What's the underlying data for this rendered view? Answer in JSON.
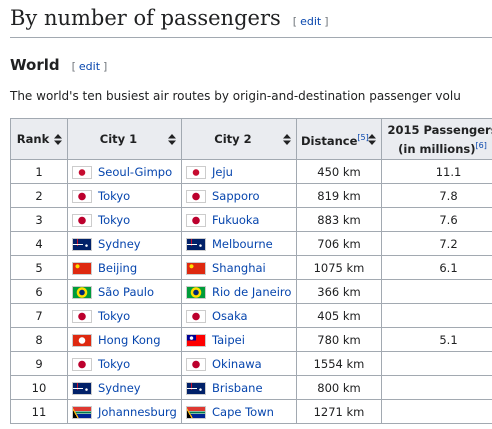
{
  "heading": {
    "title": "By number of passengers",
    "edit": {
      "open": "[",
      "label": "edit",
      "close": "]"
    }
  },
  "section": {
    "title": "World",
    "edit": {
      "open": "[",
      "label": "edit",
      "close": "]"
    }
  },
  "intro": "The world's ten busiest air routes by origin-and-destination passenger volu",
  "table": {
    "columns": [
      {
        "label": "Rank"
      },
      {
        "label": "City 1"
      },
      {
        "label": "City 2"
      },
      {
        "label": "Distance",
        "ref": "[5]"
      },
      {
        "label": "2015 Passengers (in millions)",
        "ref": "[6]"
      }
    ],
    "rows": [
      {
        "rank": "1",
        "city1": "Seoul-Gimpo",
        "city2": "Jeju",
        "distance": "450 km",
        "passengers": "11.1"
      },
      {
        "rank": "2",
        "city1": "Tokyo",
        "city2": "Sapporo",
        "distance": "819 km",
        "passengers": "7.8"
      },
      {
        "rank": "3",
        "city1": "Tokyo",
        "city2": "Fukuoka",
        "distance": "883 km",
        "passengers": "7.6"
      },
      {
        "rank": "4",
        "city1": "Sydney",
        "city2": "Melbourne",
        "distance": "706 km",
        "passengers": "7.2"
      },
      {
        "rank": "5",
        "city1": "Beijing",
        "city2": "Shanghai",
        "distance": "1075 km",
        "passengers": "6.1"
      },
      {
        "rank": "6",
        "city1": "São Paulo",
        "city2": "Rio de Janeiro",
        "distance": "366 km"
      },
      {
        "rank": "7",
        "city1": "Tokyo",
        "city2": "Osaka",
        "distance": "405 km"
      },
      {
        "rank": "8",
        "city1": "Hong Kong",
        "city2": "Taipei",
        "distance": "780 km",
        "passengers": "5.1"
      },
      {
        "rank": "9",
        "city1": "Tokyo",
        "city2": "Okinawa",
        "distance": "1554 km"
      },
      {
        "rank": "10",
        "city1": "Sydney",
        "city2": "Brisbane",
        "distance": "800 km"
      },
      {
        "rank": "11",
        "city1": "Johannesburg",
        "city2": "Cape Town",
        "distance": "1271 km"
      }
    ]
  }
}
